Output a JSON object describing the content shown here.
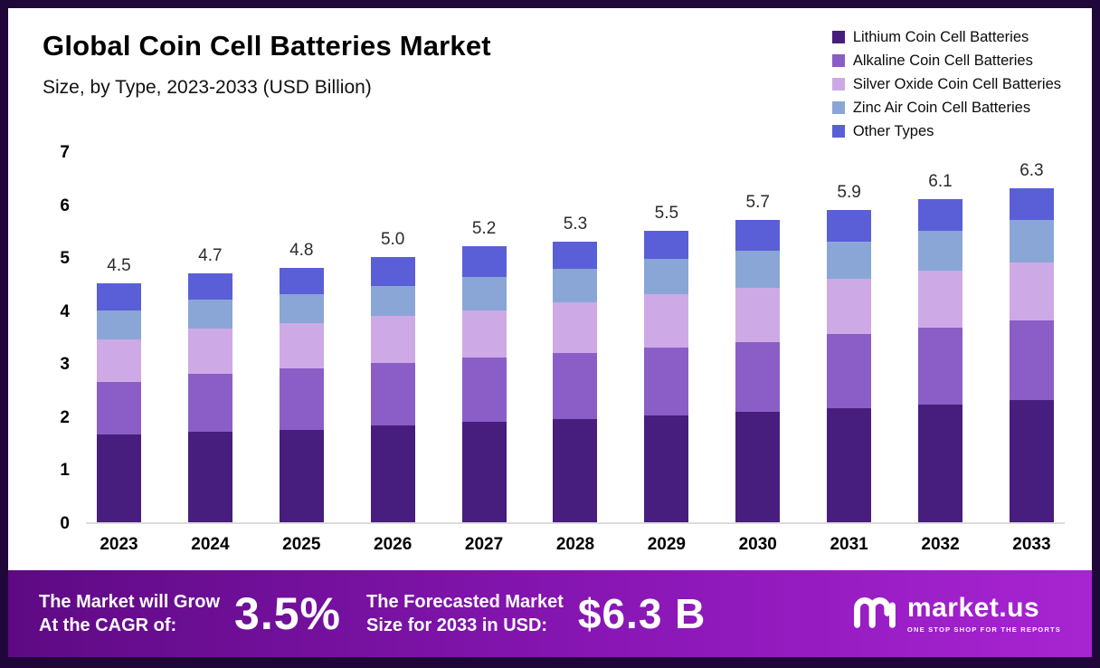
{
  "header": {
    "title": "Global Coin Cell Batteries Market",
    "subtitle": "Size, by Type, 2023-2033 (USD Billion)"
  },
  "chart_data": {
    "type": "bar",
    "stacked": true,
    "title": "Global Coin Cell Batteries Market Size, by Type, 2023-2033 (USD Billion)",
    "xlabel": "",
    "ylabel": "",
    "ylim": [
      0,
      7
    ],
    "yticks": [
      0,
      1,
      2,
      3,
      4,
      5,
      6,
      7
    ],
    "grid": false,
    "legend_position": "top-right",
    "categories": [
      "2023",
      "2024",
      "2025",
      "2026",
      "2027",
      "2028",
      "2029",
      "2030",
      "2031",
      "2032",
      "2033"
    ],
    "series": [
      {
        "name": "Lithium Coin Cell Batteries",
        "color": "#471e7d",
        "values": [
          1.65,
          1.7,
          1.75,
          1.82,
          1.9,
          1.95,
          2.02,
          2.08,
          2.15,
          2.22,
          2.3
        ]
      },
      {
        "name": "Alkaline Coin Cell Batteries",
        "color": "#8a5ec6",
        "values": [
          1.0,
          1.1,
          1.15,
          1.18,
          1.2,
          1.25,
          1.28,
          1.32,
          1.4,
          1.45,
          1.5
        ]
      },
      {
        "name": "Silver Oxide Coin Cell Batteries",
        "color": "#cdaae6",
        "values": [
          0.8,
          0.85,
          0.85,
          0.9,
          0.9,
          0.95,
          1.0,
          1.02,
          1.05,
          1.08,
          1.1
        ]
      },
      {
        "name": "Zinc Air Coin Cell Batteries",
        "color": "#8aa6d6",
        "values": [
          0.55,
          0.55,
          0.55,
          0.55,
          0.62,
          0.63,
          0.67,
          0.7,
          0.7,
          0.75,
          0.8
        ]
      },
      {
        "name": "Other Types",
        "color": "#5a5fd7",
        "values": [
          0.5,
          0.5,
          0.5,
          0.55,
          0.58,
          0.52,
          0.53,
          0.58,
          0.6,
          0.6,
          0.6
        ]
      }
    ],
    "totals": [
      "4.5",
      "4.7",
      "4.8",
      "5.0",
      "5.2",
      "5.3",
      "5.5",
      "5.7",
      "5.9",
      "6.1",
      "6.3"
    ]
  },
  "banner": {
    "cagr_label_line1": "The Market will Grow",
    "cagr_label_line2": "At the CAGR of:",
    "cagr_value": "3.5%",
    "forecast_label_line1": "The Forecasted Market",
    "forecast_label_line2": "Size for 2033 in USD:",
    "forecast_value": "$6.3 B",
    "logo_text": "market.us",
    "logo_tagline": "ONE STOP SHOP FOR THE REPORTS"
  },
  "colors": {
    "frame": "#200739",
    "banner_gradient_start": "#5e0a84",
    "banner_gradient_end": "#a824d2"
  }
}
